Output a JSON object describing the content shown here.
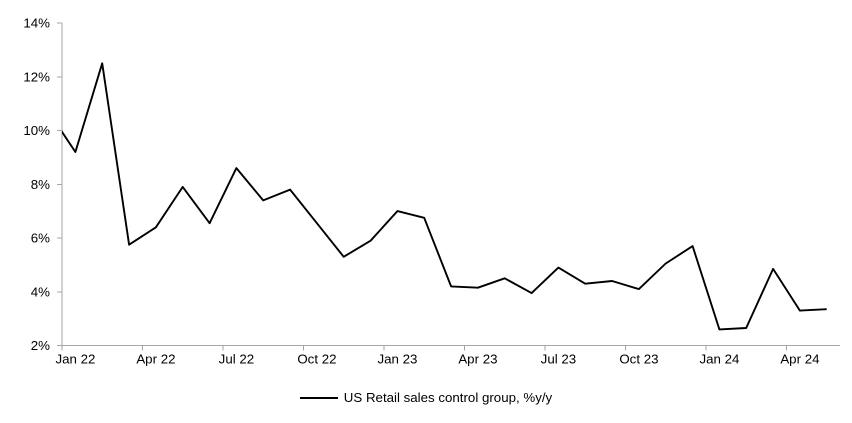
{
  "chart_data": {
    "type": "line",
    "title": "",
    "xlabel": "",
    "ylabel": "",
    "ylim": [
      2,
      14
    ],
    "y_tick_step": 2,
    "y_ticks": [
      "2%",
      "4%",
      "6%",
      "8%",
      "10%",
      "12%",
      "14%"
    ],
    "x_tick_labels": [
      "Jan 22",
      "Apr 22",
      "Jul 22",
      "Oct 22",
      "Jan 23",
      "Apr 23",
      "Jul 23",
      "Oct 23",
      "Jan 24",
      "Apr 24"
    ],
    "months_per_tick": 3,
    "grid": false,
    "legend_position": "bottom-center",
    "axis_color": "#a6a6a6",
    "text_color": "#000000",
    "background_color": "#ffffff",
    "categories": [
      "Jan 22",
      "Feb 22",
      "Mar 22",
      "Apr 22",
      "May 22",
      "Jun 22",
      "Jul 22",
      "Aug 22",
      "Sep 22",
      "Oct 22",
      "Nov 22",
      "Dec 22",
      "Jan 23",
      "Feb 23",
      "Mar 23",
      "Apr 23",
      "May 23",
      "Jun 23",
      "Jul 23",
      "Aug 23",
      "Sep 23",
      "Oct 23",
      "Nov 23",
      "Dec 23",
      "Jan 24",
      "Feb 24",
      "Mar 24",
      "Apr 24",
      "May 24"
    ],
    "series": [
      {
        "name": "US Retail sales control group, %y/y",
        "color": "#000000",
        "lead_in": {
          "label": "Dec 21",
          "value": 10.7
        },
        "values": [
          9.2,
          12.5,
          5.75,
          6.4,
          7.9,
          6.55,
          8.6,
          7.4,
          7.8,
          6.55,
          5.3,
          5.9,
          7.0,
          6.75,
          4.2,
          4.15,
          4.5,
          3.95,
          4.9,
          4.3,
          4.4,
          4.1,
          5.05,
          5.7,
          2.6,
          2.65,
          4.85,
          3.3,
          3.35
        ]
      }
    ]
  },
  "legend": {
    "label": "US Retail sales control group, %y/y"
  }
}
